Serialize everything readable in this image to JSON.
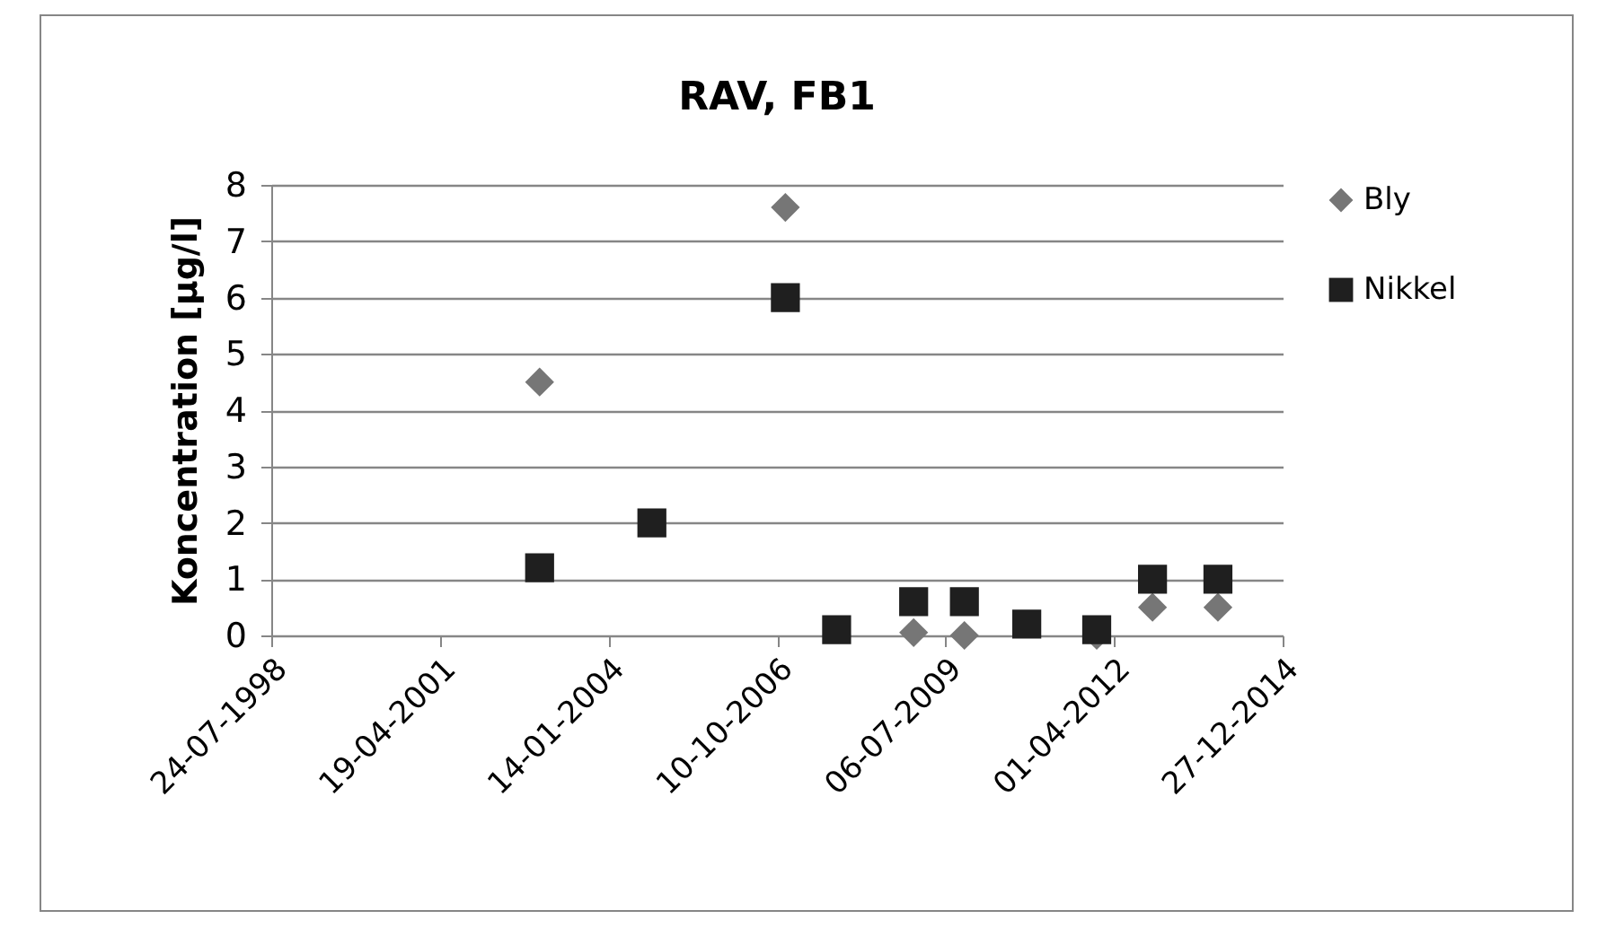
{
  "chart_data": {
    "type": "scatter",
    "title": "RAV, FB1",
    "ylabel": "Koncentration [µg/l]",
    "x": [
      "2002-12-02",
      "2004-09-28",
      "2006-11-29",
      "2007-09-29",
      "2008-12-29",
      "2009-10-26",
      "2010-10-31",
      "2011-12-20",
      "2012-11-15",
      "2013-12-08"
    ],
    "series": [
      {
        "name": "Bly",
        "color": "#767676",
        "marker": "diamond",
        "values": [
          4.5,
          null,
          7.6,
          null,
          0.05,
          0,
          null,
          0,
          0.5,
          0.5
        ]
      },
      {
        "name": "Nikkel",
        "color": "#1f1f1f",
        "marker": "square",
        "values": [
          1.2,
          2,
          6,
          0.1,
          0.6,
          0.6,
          0.2,
          0.1,
          1,
          1
        ]
      }
    ],
    "xlim": [
      "1998-07-24",
      "2014-12-27"
    ],
    "xticks": [
      {
        "value": "1998-07-24",
        "label": "24-07-1998"
      },
      {
        "value": "2001-04-19",
        "label": "19-04-2001"
      },
      {
        "value": "2004-01-14",
        "label": "14-01-2004"
      },
      {
        "value": "2006-10-10",
        "label": "10-10-2006"
      },
      {
        "value": "2009-07-06",
        "label": "06-07-2009"
      },
      {
        "value": "2012-04-01",
        "label": "01-04-2012"
      },
      {
        "value": "2014-12-27",
        "label": "27-12-2014"
      }
    ],
    "ylim": [
      0,
      8
    ],
    "yticks": [
      0,
      1,
      2,
      3,
      4,
      5,
      6,
      7,
      8
    ],
    "grid": "y",
    "legend": "right"
  }
}
